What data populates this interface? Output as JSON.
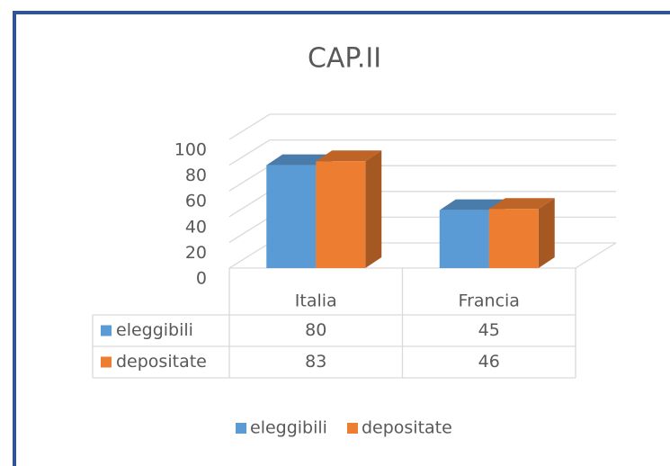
{
  "chart_data": {
    "type": "bar",
    "title": "CAP.II",
    "categories": [
      "Italia",
      "Francia"
    ],
    "series": [
      {
        "name": "eleggibili",
        "color": "#5b9bd5",
        "values": [
          80,
          45
        ]
      },
      {
        "name": "depositate",
        "color": "#ed7d31",
        "values": [
          83,
          46
        ]
      }
    ],
    "ylim": [
      0,
      100
    ],
    "yticks": [
      0,
      20,
      40,
      60,
      80,
      100
    ],
    "grid": true,
    "legend": "bottom"
  }
}
